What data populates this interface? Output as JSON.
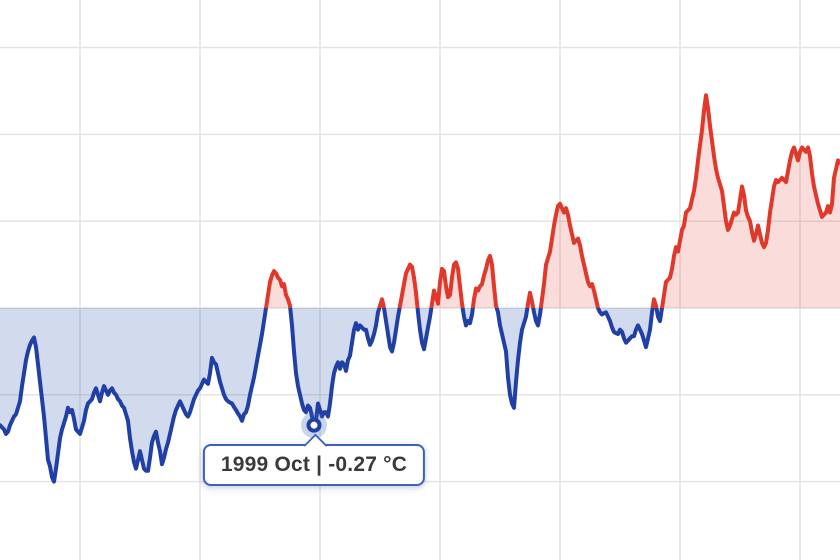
{
  "tooltip": {
    "label": "1999 Oct | -0.27 °C"
  },
  "chart_data": {
    "type": "line",
    "title": "",
    "xlabel": "",
    "ylabel": "",
    "legend": "none",
    "grid": true,
    "x_axis": {
      "gridline_years": [
        1990,
        1995,
        2000,
        2005,
        2010,
        2015,
        2020
      ],
      "visible_range_year_fraction": [
        1986.67,
        2021.75
      ],
      "tick_labels_visible": false
    },
    "y_axis": {
      "unit": "°C",
      "gridline_values": [
        0.6,
        0.4,
        0.2,
        0,
        -0.2,
        -0.4
      ],
      "visible_range": [
        -0.58,
        0.71
      ],
      "zero_baseline": true,
      "tick_labels_visible": false
    },
    "series": [
      {
        "name": "monthly-temperature-anomaly",
        "unit": "°C",
        "start_year": 1986,
        "start_month": 9,
        "months_per_point": 1,
        "values": [
          -0.27,
          -0.275,
          -0.28,
          -0.29,
          -0.285,
          -0.27,
          -0.26,
          -0.25,
          -0.245,
          -0.23,
          -0.215,
          -0.18,
          -0.15,
          -0.12,
          -0.1,
          -0.085,
          -0.075,
          -0.068,
          -0.09,
          -0.13,
          -0.17,
          -0.21,
          -0.25,
          -0.3,
          -0.35,
          -0.365,
          -0.39,
          -0.4,
          -0.37,
          -0.335,
          -0.3,
          -0.28,
          -0.265,
          -0.25,
          -0.23,
          -0.24,
          -0.235,
          -0.255,
          -0.28,
          -0.285,
          -0.29,
          -0.275,
          -0.26,
          -0.235,
          -0.22,
          -0.215,
          -0.21,
          -0.195,
          -0.185,
          -0.2,
          -0.215,
          -0.195,
          -0.18,
          -0.19,
          -0.2,
          -0.19,
          -0.185,
          -0.195,
          -0.2,
          -0.21,
          -0.215,
          -0.225,
          -0.23,
          -0.245,
          -0.26,
          -0.3,
          -0.33,
          -0.355,
          -0.37,
          -0.35,
          -0.33,
          -0.35,
          -0.37,
          -0.375,
          -0.375,
          -0.345,
          -0.31,
          -0.295,
          -0.285,
          -0.31,
          -0.33,
          -0.36,
          -0.345,
          -0.325,
          -0.31,
          -0.29,
          -0.27,
          -0.25,
          -0.235,
          -0.225,
          -0.215,
          -0.225,
          -0.235,
          -0.245,
          -0.25,
          -0.24,
          -0.225,
          -0.21,
          -0.2,
          -0.19,
          -0.185,
          -0.175,
          -0.165,
          -0.17,
          -0.175,
          -0.15,
          -0.115,
          -0.125,
          -0.13,
          -0.15,
          -0.17,
          -0.185,
          -0.2,
          -0.21,
          -0.215,
          -0.218,
          -0.22,
          -0.228,
          -0.235,
          -0.243,
          -0.25,
          -0.26,
          -0.245,
          -0.24,
          -0.225,
          -0.2,
          -0.18,
          -0.16,
          -0.135,
          -0.11,
          -0.085,
          -0.06,
          -0.03,
          0,
          0.03,
          0.06,
          0.075,
          0.085,
          0.08,
          0.07,
          0.065,
          0.05,
          0.055,
          0.03,
          0.02,
          0.005,
          -0.04,
          -0.1,
          -0.15,
          -0.18,
          -0.2,
          -0.22,
          -0.235,
          -0.24,
          -0.225,
          -0.23,
          -0.25,
          -0.27,
          -0.26,
          -0.22,
          -0.235,
          -0.25,
          -0.24,
          -0.24,
          -0.25,
          -0.22,
          -0.18,
          -0.15,
          -0.135,
          -0.125,
          -0.14,
          -0.125,
          -0.13,
          -0.145,
          -0.12,
          -0.11,
          -0.08,
          -0.05,
          -0.035,
          -0.05,
          -0.04,
          -0.045,
          -0.05,
          -0.05,
          -0.07,
          -0.085,
          -0.075,
          -0.06,
          -0.04,
          -0.01,
          0.005,
          0.02,
          0,
          -0.03,
          -0.06,
          -0.09,
          -0.1,
          -0.08,
          -0.05,
          -0.02,
          0.005,
          0.03,
          0.055,
          0.08,
          0.09,
          0.1,
          0.095,
          0.07,
          0.035,
          -0.01,
          -0.05,
          -0.08,
          -0.095,
          -0.07,
          -0.045,
          -0.02,
          0.01,
          0.04,
          0.025,
          0.01,
          0.06,
          0.09,
          0.085,
          0.05,
          0.025,
          0.03,
          0.07,
          0.1,
          0.105,
          0.09,
          0.05,
          0.01,
          -0.02,
          -0.04,
          -0.03,
          -0.035,
          -0.015,
          0.02,
          0.045,
          0.04,
          0.05,
          0.055,
          0.075,
          0.09,
          0.11,
          0.12,
          0.1,
          0.05,
          0.005,
          -0.01,
          -0.04,
          -0.06,
          -0.08,
          -0.1,
          -0.16,
          -0.2,
          -0.22,
          -0.23,
          -0.17,
          -0.12,
          -0.08,
          -0.05,
          -0.035,
          -0.02,
          0.01,
          0.035,
          0.015,
          -0.01,
          -0.03,
          -0.04,
          -0.015,
          0.02,
          0.055,
          0.1,
          0.115,
          0.13,
          0.16,
          0.19,
          0.215,
          0.235,
          0.24,
          0.23,
          0.22,
          0.23,
          0.215,
          0.19,
          0.17,
          0.15,
          0.155,
          0.16,
          0.145,
          0.12,
          0.1,
          0.08,
          0.06,
          0.05,
          0.055,
          0.04,
          0.02,
          0,
          -0.01,
          -0.015,
          -0.012,
          -0.01,
          -0.02,
          -0.03,
          -0.045,
          -0.055,
          -0.058,
          -0.06,
          -0.05,
          -0.055,
          -0.07,
          -0.08,
          -0.075,
          -0.07,
          -0.065,
          -0.065,
          -0.05,
          -0.04,
          -0.05,
          -0.06,
          -0.075,
          -0.09,
          -0.07,
          -0.05,
          -0.01,
          0.02,
          0.005,
          -0.02,
          -0.03,
          0,
          0.03,
          0.06,
          0.065,
          0.07,
          0.09,
          0.12,
          0.14,
          0.13,
          0.155,
          0.18,
          0.19,
          0.22,
          0.225,
          0.23,
          0.25,
          0.27,
          0.3,
          0.34,
          0.375,
          0.41,
          0.455,
          0.49,
          0.46,
          0.42,
          0.385,
          0.35,
          0.32,
          0.3,
          0.285,
          0.27,
          0.235,
          0.2,
          0.18,
          0.19,
          0.205,
          0.22,
          0.215,
          0.22,
          0.25,
          0.28,
          0.26,
          0.225,
          0.21,
          0.2,
          0.175,
          0.155,
          0.17,
          0.19,
          0.17,
          0.15,
          0.14,
          0.15,
          0.18,
          0.22,
          0.25,
          0.28,
          0.295,
          0.29,
          0.295,
          0.3,
          0.295,
          0.29,
          0.315,
          0.34,
          0.36,
          0.37,
          0.355,
          0.34,
          0.36,
          0.37,
          0.365,
          0.36,
          0.37,
          0.35,
          0.31,
          0.28,
          0.26,
          0.24,
          0.225,
          0.21,
          0.215,
          0.22,
          0.235,
          0.22,
          0.24,
          0.3,
          0.32,
          0.34,
          0.335
        ]
      }
    ],
    "annotations": [
      {
        "type": "hover-tooltip",
        "label": "1999 Oct | -0.27 °C",
        "point": {
          "year": 1999,
          "month": 10,
          "month_label": "Oct",
          "value": -0.27
        }
      }
    ],
    "colors": {
      "line_above_zero": "#e0382a",
      "line_below_zero": "#2140a5",
      "fill_above_zero": "rgba(224,56,42,0.17)",
      "fill_below_zero": "rgba(52,88,178,0.22)",
      "grid": "#e2e2e2",
      "tooltip_border": "#3c60c2",
      "tooltip_text": "#3a3a3a",
      "marker_halo": "rgba(60,95,190,0.27)",
      "background": "#ffffff"
    }
  }
}
